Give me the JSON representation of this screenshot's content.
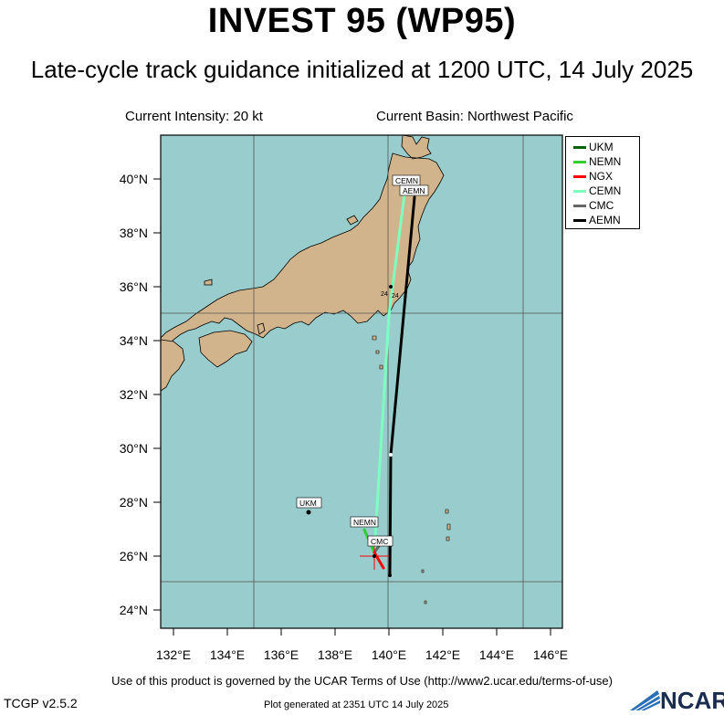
{
  "header": {
    "title": "INVEST 95 (WP95)",
    "subtitle": "Late-cycle track guidance initialized at 1200 UTC, 14 July 2025",
    "intensity": "Current Intensity: 20 kt",
    "basin": "Current Basin: Northwest Pacific"
  },
  "map": {
    "lat_range": [
      23.3,
      41.5
    ],
    "lon_range": [
      131,
      146.1
    ],
    "ocean_color": "#99cccc",
    "land_color": "#d2b48c",
    "lat_ticks": [
      "40°N",
      "38°N",
      "36°N",
      "34°N",
      "32°N",
      "30°N",
      "28°N",
      "26°N",
      "24°N"
    ],
    "lon_ticks": [
      "132°E",
      "134°E",
      "136°E",
      "138°E",
      "140°E",
      "142°E",
      "144°E",
      "146°E"
    ]
  },
  "legend": {
    "items": [
      {
        "name": "UKM",
        "color": "#006400"
      },
      {
        "name": "NEMN",
        "color": "#32cd32"
      },
      {
        "name": "NGX",
        "color": "#ff0000"
      },
      {
        "name": "CEMN",
        "color": "#7fffbf"
      },
      {
        "name": "CMC",
        "color": "#666666"
      },
      {
        "name": "AEMN",
        "color": "#000000"
      }
    ]
  },
  "tracks": {
    "labels": {
      "ukm": "UKM",
      "nemn": "NEMN",
      "cmc": "CMC",
      "cemn": "CEMN",
      "aemn": "AEMN",
      "marker_a": "24",
      "marker_b": "24"
    }
  },
  "footer": {
    "terms": "Use of this product is governed by the UCAR Terms of Use (http://www2.ucar.edu/terms-of-use)",
    "version": "TCGP v2.5.2",
    "generated": "Plot generated at 2351 UTC  14 July 2025",
    "logo_text": "NCAR"
  }
}
